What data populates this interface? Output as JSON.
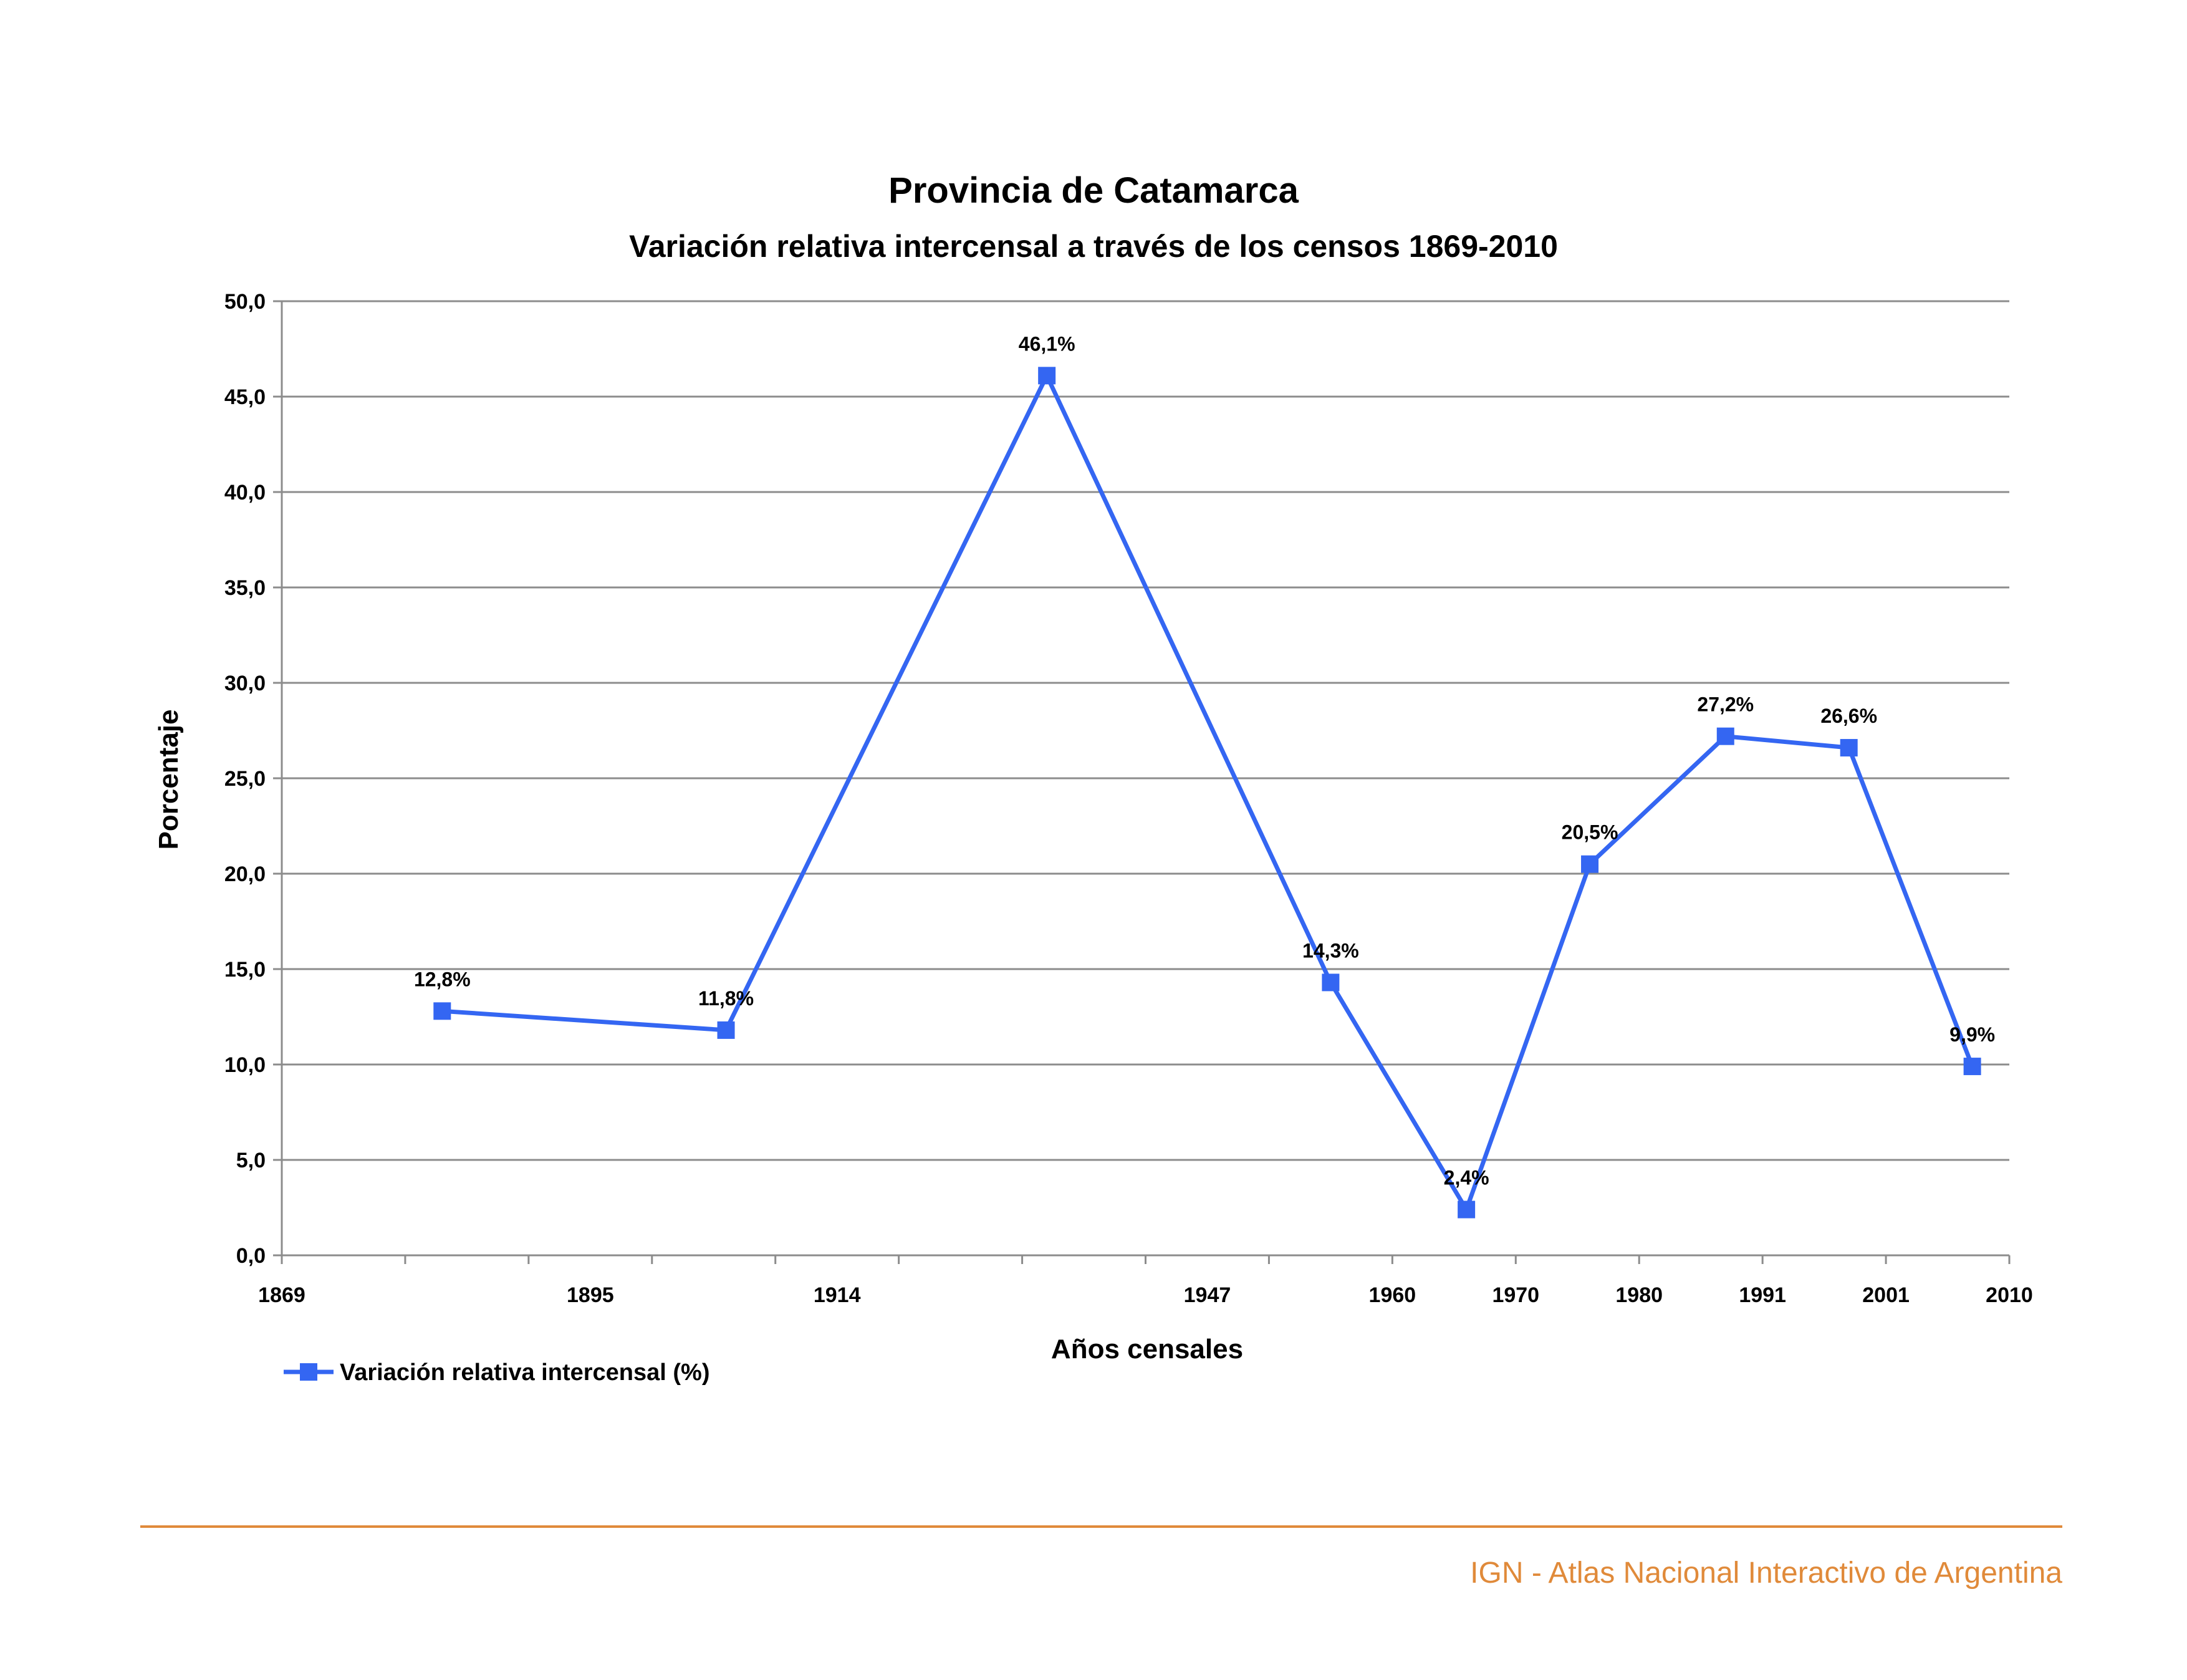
{
  "colors": {
    "series": "#3466f2",
    "grid": "#8c8c8c",
    "axis": "#8c8c8c",
    "footer": "#e08a3a"
  },
  "chart_data": {
    "type": "line",
    "title": "Provincia de Catamarca",
    "subtitle": "Variación relativa intercensal a través de los censos 1869-2010",
    "xlabel": "Años censales",
    "ylabel": "Porcentaje",
    "xlim": [
      1869,
      2010
    ],
    "ylim": [
      0,
      50
    ],
    "y_ticks": [
      "0,0",
      "5,0",
      "10,0",
      "15,0",
      "20,0",
      "25,0",
      "30,0",
      "35,0",
      "40,0",
      "45,0",
      "50,0"
    ],
    "x_tick_labels": [
      "1869",
      "1895",
      "1914",
      "1947",
      "1960",
      "1970",
      "1980",
      "1991",
      "2001",
      "2010"
    ],
    "grid": true,
    "legend_position": "bottom-left",
    "series": [
      {
        "name": "Variación relativa intercensal (%)",
        "values": [
          12.8,
          11.8,
          46.1,
          14.3,
          2.4,
          20.5,
          27.2,
          26.6,
          9.9
        ],
        "labels": [
          "12,8%",
          "11,8%",
          "46,1%",
          "14,3%",
          "2,4%",
          "20,5%",
          "27,2%",
          "26,6%",
          "9,9%"
        ]
      }
    ]
  },
  "footer": {
    "text": "IGN - Atlas Nacional Interactivo de Argentina"
  }
}
